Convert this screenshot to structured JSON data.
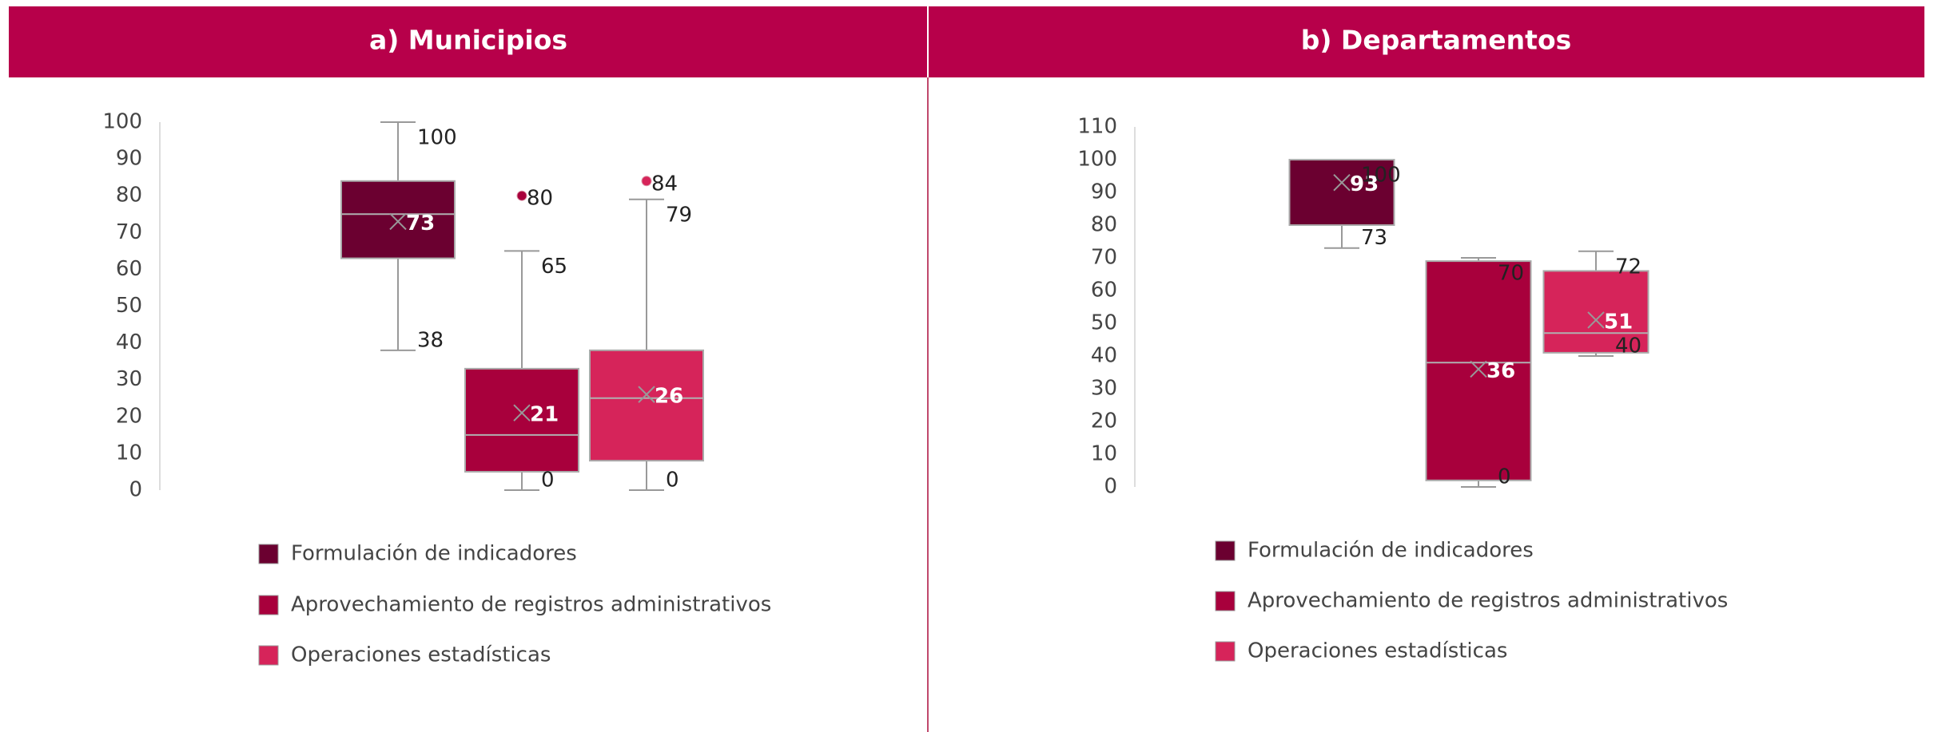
{
  "chart_data": [
    {
      "type": "box",
      "title": "a)  Municipios",
      "ylim": [
        0,
        100
      ],
      "yticks": [
        0,
        10,
        20,
        30,
        40,
        50,
        60,
        70,
        80,
        90,
        100
      ],
      "series": [
        {
          "name": "Formulación de indicadores",
          "color": "#6b0030",
          "min": 38,
          "q1": 63,
          "median": 75,
          "q3": 84,
          "max": 100,
          "mean": 73,
          "outliers": []
        },
        {
          "name": "Aprovechamiento de registros administrativos",
          "color": "#a8003c",
          "min": 0,
          "q1": 5,
          "median": 15,
          "q3": 33,
          "max": 65,
          "mean": 21,
          "outliers": [
            80
          ]
        },
        {
          "name": "Operaciones estadísticas",
          "color": "#d6245a",
          "min": 0,
          "q1": 8,
          "median": 25,
          "q3": 38,
          "max": 79,
          "mean": 26,
          "outliers": [
            84
          ]
        }
      ]
    },
    {
      "type": "box",
      "title": "b) Departamentos",
      "ylim": [
        0,
        110
      ],
      "yticks": [
        0,
        10,
        20,
        30,
        40,
        50,
        60,
        70,
        80,
        90,
        100,
        110
      ],
      "series": [
        {
          "name": "Formulación de indicadores",
          "color": "#6b0030",
          "min": 73,
          "q1": 80,
          "median": 100,
          "q3": 100,
          "max": 100,
          "mean": 93,
          "outliers": []
        },
        {
          "name": "Aprovechamiento de registros administrativos",
          "color": "#a8003c",
          "min": 0,
          "q1": 2,
          "median": 38,
          "q3": 69,
          "max": 70,
          "mean": 36,
          "outliers": []
        },
        {
          "name": "Operaciones estadísticas",
          "color": "#d6245a",
          "min": 40,
          "q1": 41,
          "median": 47,
          "q3": 66,
          "max": 72,
          "mean": 51,
          "outliers": []
        }
      ]
    }
  ]
}
